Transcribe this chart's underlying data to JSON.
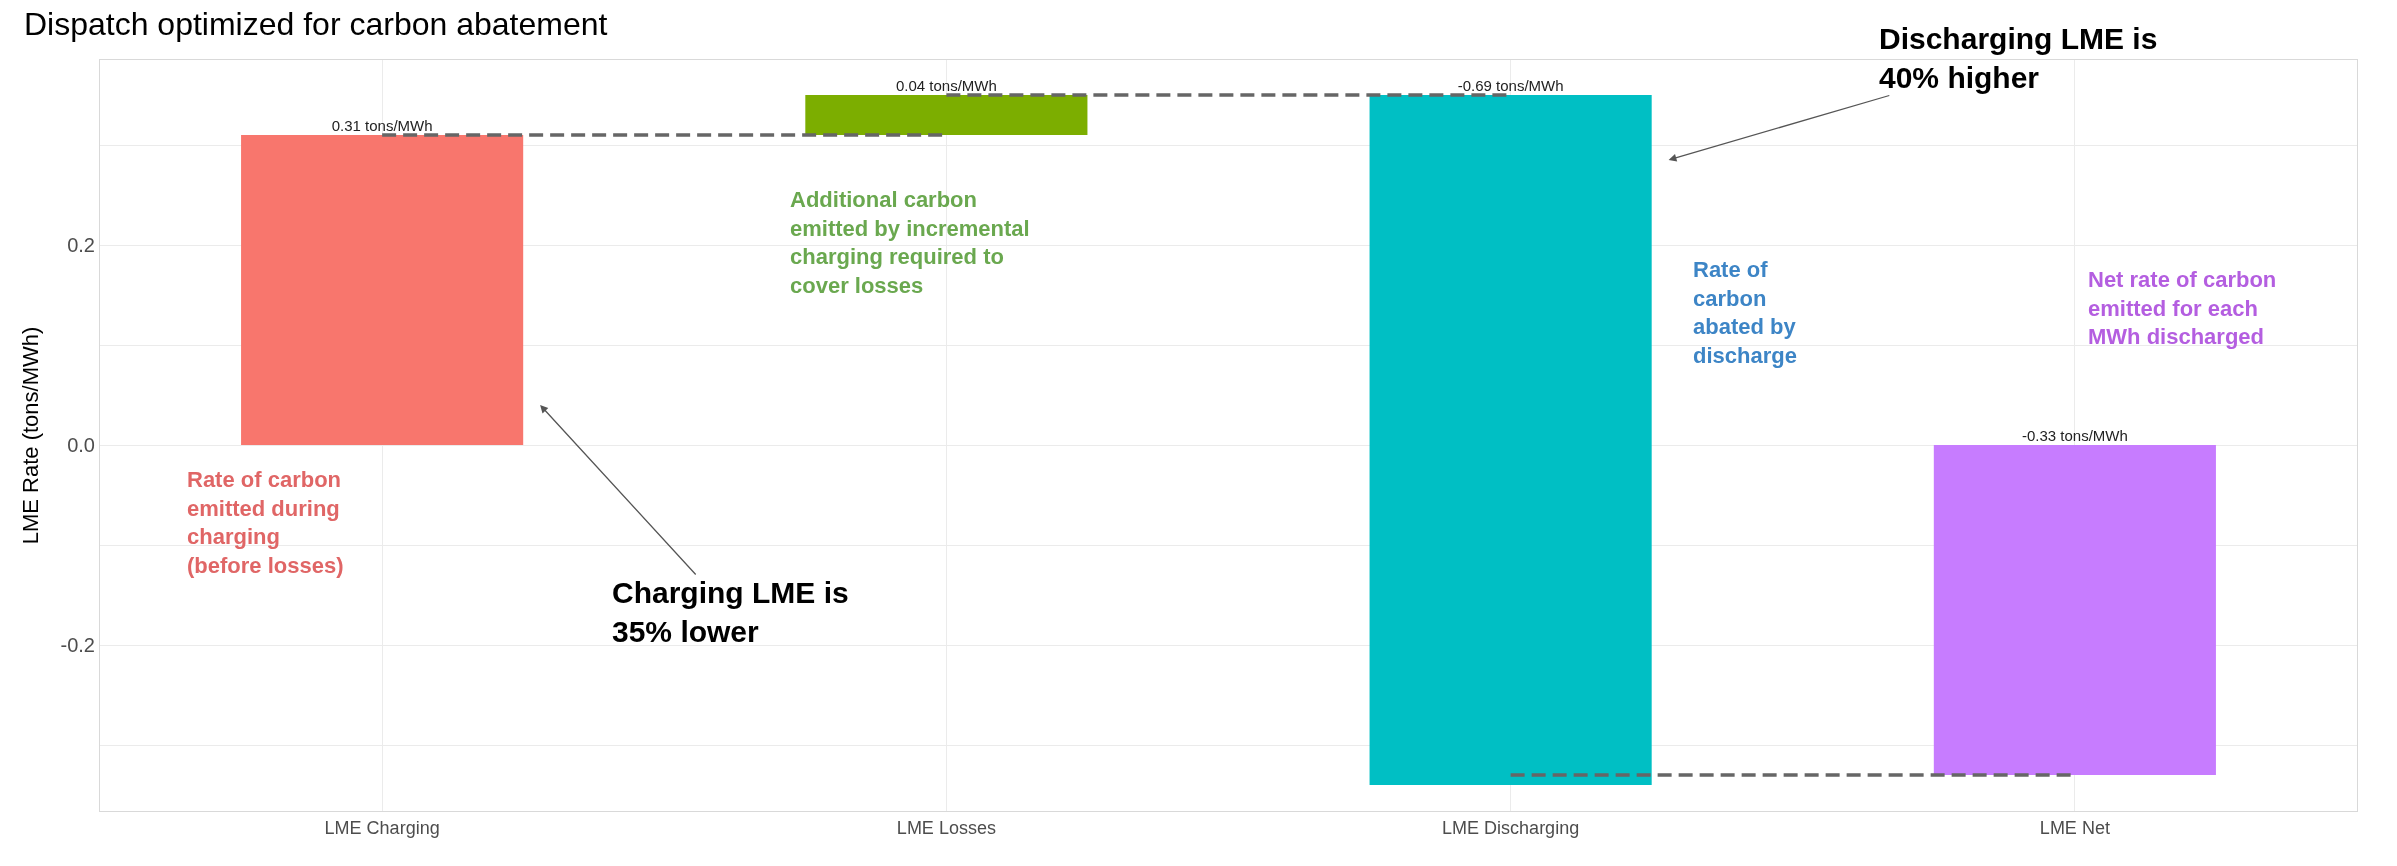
{
  "chart_data": {
    "type": "bar",
    "title": "Dispatch optimized for carbon abatement",
    "ylabel": "LME Rate (tons/MWh)",
    "categories": [
      "LME Charging",
      "LME Losses",
      "LME Discharging",
      "LME Net"
    ],
    "series": [
      {
        "values": [
          0.31,
          0.04,
          -0.69,
          -0.33
        ],
        "base": [
          0,
          0.31,
          0.35,
          0
        ],
        "colors": [
          "#f8766d",
          "#7cae00",
          "#00bfc4",
          "#c77cff"
        ],
        "value_labels": [
          "0.31 tons/MWh",
          "0.04 tons/MWh",
          "-0.69 tons/MWh",
          "-0.33 tons/MWh"
        ]
      },
      {
        "type": "line",
        "x": [
          "LME Charging",
          "LME Losses"
        ],
        "values": [
          0.31,
          0.31
        ],
        "color": "#666666",
        "line_style": "dashed"
      },
      {
        "type": "line",
        "x": [
          "LME Losses",
          "LME Discharging"
        ],
        "values": [
          0.35,
          0.35
        ],
        "color": "#666666",
        "line_style": "dashed"
      },
      {
        "type": "line",
        "x": [
          "LME Discharging",
          "LME Net"
        ],
        "values": [
          -0.33,
          -0.33
        ],
        "color": "#666666",
        "line_style": "dashed"
      }
    ],
    "ylim": [
      -0.366,
      0.385
    ],
    "yticks": [
      {
        "value": -0.3,
        "label": null
      },
      -0.2,
      {
        "value": -0.1,
        "label": null
      },
      {
        "value": 0,
        "label": "0.0"
      },
      {
        "value": 0.1,
        "label": null
      },
      0.2,
      {
        "value": 0.3,
        "label": null
      }
    ],
    "annotations": [
      "Rate of carbon\nemitted during\ncharging\n(before losses)",
      "Additional carbon\nemitted by incremental\ncharging required to\ncover losses",
      "Rate of\ncarbon\nabated by\ndischarge",
      "Net rate of carbon\nemitted for each\nMWh discharged",
      "Charging LME is\n35% lower",
      "Discharging LME is\n40% higher"
    ],
    "grid": true
  }
}
